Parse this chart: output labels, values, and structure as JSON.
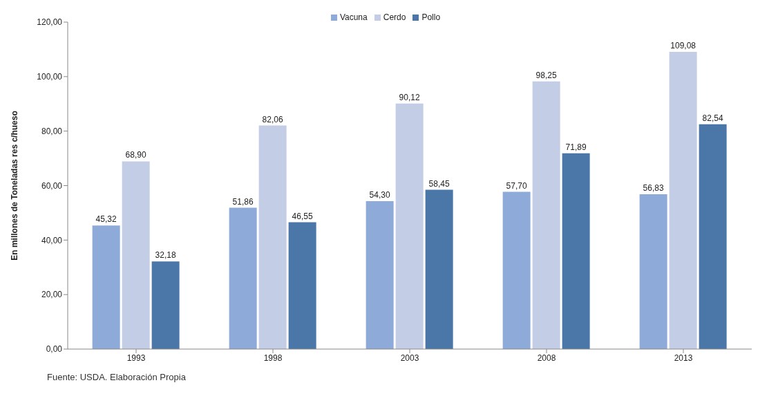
{
  "chart_data": {
    "type": "bar",
    "ylabel": "En millones de Toneladas res c/hueso",
    "categories": [
      "1993",
      "1998",
      "2003",
      "2008",
      "2013"
    ],
    "series": [
      {
        "name": "Vacuna",
        "color": "#8eaad8",
        "values": [
          45.32,
          51.86,
          54.3,
          57.7,
          56.83
        ],
        "value_labels": [
          "45,32",
          "51,86",
          "54,30",
          "57,70",
          "56,83"
        ]
      },
      {
        "name": "Cerdo",
        "color": "#c3cde6",
        "values": [
          68.9,
          82.06,
          90.12,
          98.25,
          109.08
        ],
        "value_labels": [
          "68,90",
          "82,06",
          "90,12",
          "98,25",
          "109,08"
        ]
      },
      {
        "name": "Pollo",
        "color": "#4a76a8",
        "values": [
          32.18,
          46.55,
          58.45,
          71.89,
          82.54
        ],
        "value_labels": [
          "32,18",
          "46,55",
          "58,45",
          "71,89",
          "82,54"
        ]
      }
    ],
    "ylim": [
      0,
      120
    ],
    "yticks": [
      {
        "value": 0,
        "label": "0,00"
      },
      {
        "value": 20,
        "label": "20,00"
      },
      {
        "value": 40,
        "label": "40,00"
      },
      {
        "value": 60,
        "label": "60,00"
      },
      {
        "value": 80,
        "label": "80,00"
      },
      {
        "value": 100,
        "label": "100,00"
      },
      {
        "value": 120,
        "label": "120,00"
      }
    ],
    "grid": false,
    "legend": "top",
    "annotations": [
      "Fuente: USDA. Elaboración Propia"
    ]
  }
}
